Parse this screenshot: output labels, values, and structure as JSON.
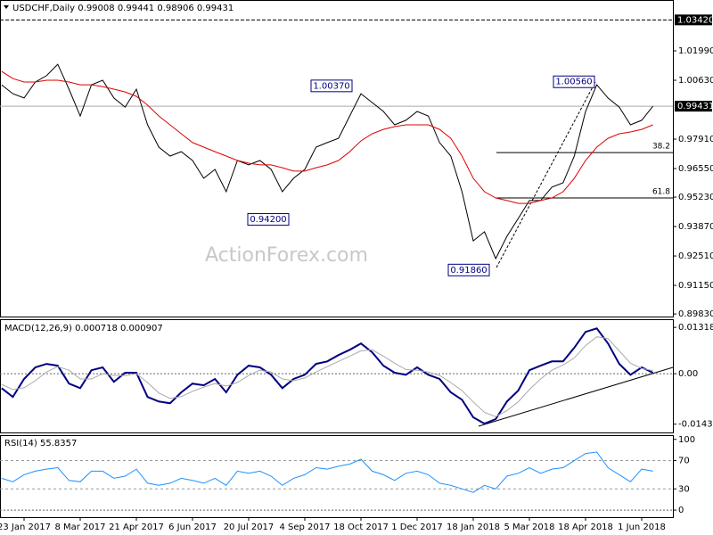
{
  "chart_data": [
    {
      "type": "line",
      "title": "USDCHF,Daily  0.99008 0.99441 0.98906 0.99431",
      "watermark": "ActionForex.com",
      "categories": [
        null,
        null,
        "23 Jan 2017",
        null,
        null,
        null,
        null,
        "8 Mar 2017",
        null,
        null,
        null,
        null,
        "21 Apr 2017",
        null,
        null,
        null,
        null,
        "6 Jun 2017",
        null,
        null,
        null,
        null,
        "20 Jul 2017",
        null,
        null,
        null,
        null,
        "4 Sep 2017",
        null,
        null,
        null,
        null,
        "18 Oct 2017",
        null,
        null,
        null,
        null,
        "1 Dec 2017",
        null,
        null,
        null,
        null,
        "18 Jan 2018",
        null,
        null,
        null,
        null,
        "5 Mar 2018",
        null,
        null,
        null,
        null,
        "18 Apr 2018",
        null,
        null,
        null,
        null,
        "1 Jun 2018",
        null
      ],
      "series": [
        {
          "name": "USDCHF",
          "color": "#000000",
          "values": [
            1.0042,
            1.0001,
            0.9981,
            1.0055,
            1.0084,
            1.0137,
            1.0022,
            0.9898,
            1.0042,
            1.0063,
            0.9981,
            0.9939,
            1.0022,
            0.9857,
            0.9754,
            0.9713,
            0.9733,
            0.9692,
            0.961,
            0.9651,
            0.9548,
            0.9692,
            0.9672,
            0.9692,
            0.9651,
            0.9548,
            0.961,
            0.9651,
            0.9754,
            0.9775,
            0.9795,
            0.9898,
            1.0001,
            0.996,
            0.9919,
            0.9857,
            0.9878,
            0.9919,
            0.9898,
            0.9775,
            0.9713,
            0.9548,
            0.9321,
            0.9363,
            0.9239,
            0.9342,
            0.9424,
            0.9507,
            0.9507,
            0.9569,
            0.9589,
            0.9713,
            0.9919,
            1.0042,
            0.9981,
            0.9939,
            0.9857,
            0.9878,
            0.9943
          ]
        },
        {
          "name": "MA",
          "color": "#e00000",
          "values": [
            1.0104,
            1.0071,
            1.0055,
            1.0055,
            1.0063,
            1.0063,
            1.0055,
            1.0042,
            1.0042,
            1.0034,
            1.0022,
            1.0009,
            0.9989,
            0.9948,
            0.9898,
            0.9857,
            0.9816,
            0.9775,
            0.9754,
            0.9733,
            0.9713,
            0.9692,
            0.968,
            0.9672,
            0.9672,
            0.9659,
            0.9643,
            0.9643,
            0.9659,
            0.9672,
            0.9692,
            0.9733,
            0.9783,
            0.9816,
            0.9836,
            0.9849,
            0.9857,
            0.9857,
            0.9857,
            0.9836,
            0.9795,
            0.9713,
            0.961,
            0.9548,
            0.9519,
            0.9507,
            0.9494,
            0.9494,
            0.9507,
            0.9519,
            0.9548,
            0.961,
            0.9692,
            0.9754,
            0.9795,
            0.9816,
            0.9824,
            0.9836,
            0.9857
          ]
        }
      ],
      "ylim": [
        0.8971,
        1.0434
      ],
      "yticks": [
        {
          "value": 1.0199,
          "label": "1.01990"
        },
        {
          "value": 1.0063,
          "label": "1.00630"
        },
        {
          "value": 0.9791,
          "label": "0.97910"
        },
        {
          "value": 0.9655,
          "label": "0.96550"
        },
        {
          "value": 0.9523,
          "label": "0.95230"
        },
        {
          "value": 0.9387,
          "label": "0.93870"
        },
        {
          "value": 0.9251,
          "label": "0.92510"
        },
        {
          "value": 0.9115,
          "label": "0.91150"
        },
        {
          "value": 0.8983,
          "label": "0.89830"
        }
      ],
      "last_price": 0.99431,
      "level": {
        "value": 1.0342,
        "label": "1.03420"
      },
      "annotations": [
        {
          "value": 1.0037,
          "label": "1.00370"
        },
        {
          "value": 0.942,
          "label": "0.94200"
        },
        {
          "value": 0.9186,
          "label": "0.91860"
        },
        {
          "value": 1.0056,
          "label": "1.00560"
        }
      ],
      "fib_levels": [
        {
          "ratio": 38.2,
          "price": 0.9729
        },
        {
          "ratio": 61.8,
          "price": 0.9519
        }
      ]
    },
    {
      "type": "line",
      "title": "MACD(12,26,9) 0.000718 0.000907",
      "series": [
        {
          "name": "MACD",
          "color": "#000080",
          "values": [
            -0.0041,
            -0.0066,
            -0.0015,
            0.0018,
            0.0028,
            0.0023,
            -0.0028,
            -0.0041,
            0.001,
            0.0018,
            -0.0023,
            0.0003,
            0.0003,
            -0.0066,
            -0.0079,
            -0.0084,
            -0.0053,
            -0.0028,
            -0.0033,
            -0.0015,
            -0.0053,
            -0.0003,
            0.0023,
            0.0018,
            -0.0003,
            -0.0041,
            -0.0015,
            -0.0003,
            0.0028,
            0.0035,
            0.0053,
            0.0068,
            0.0086,
            0.0061,
            0.0023,
            0.0003,
            -0.0003,
            0.0018,
            -0.0003,
            -0.0015,
            -0.0053,
            -0.0074,
            -0.0124,
            -0.0142,
            -0.0129,
            -0.0079,
            -0.0048,
            0.001,
            0.0023,
            0.0035,
            0.0035,
            0.0074,
            0.0119,
            0.0129,
            0.0086,
            0.0028,
            -0.0003,
            0.0018,
            0.0003
          ]
        },
        {
          "name": "Signal",
          "color": "#aaaaaa",
          "values": [
            -0.003,
            -0.0045,
            -0.004,
            -0.002,
            0.0005,
            0.002,
            0.001,
            -0.0015,
            -0.0015,
            0.0,
            -0.0005,
            -0.0005,
            0.0,
            -0.0025,
            -0.0055,
            -0.007,
            -0.0065,
            -0.005,
            -0.0038,
            -0.0028,
            -0.0035,
            -0.0025,
            -0.0005,
            0.001,
            0.0005,
            -0.0015,
            -0.002,
            -0.0012,
            0.0005,
            0.002,
            0.0035,
            0.005,
            0.0065,
            0.0068,
            0.005,
            0.003,
            0.0012,
            0.001,
            0.0005,
            -0.0005,
            -0.0025,
            -0.0048,
            -0.008,
            -0.011,
            -0.0122,
            -0.0105,
            -0.008,
            -0.0045,
            -0.0015,
            0.001,
            0.0025,
            0.0045,
            0.008,
            0.0105,
            0.01,
            0.0065,
            0.003,
            0.0015,
            0.0009
          ]
        }
      ],
      "ylim": [
        -0.0167,
        0.0155
      ],
      "yticks": [
        0.013184,
        {
          "value": 0,
          "label": "0.00"
        },
        -0.014339
      ]
    },
    {
      "type": "line",
      "title": "RSI(14) 55.8357",
      "series": [
        {
          "name": "RSI",
          "color": "#1e90ff",
          "values": [
            45,
            40,
            50,
            55,
            58,
            60,
            42,
            40,
            55,
            55,
            45,
            48,
            58,
            38,
            35,
            38,
            45,
            42,
            38,
            45,
            35,
            55,
            52,
            55,
            48,
            35,
            45,
            50,
            60,
            58,
            62,
            65,
            72,
            55,
            50,
            42,
            52,
            55,
            50,
            38,
            35,
            30,
            25,
            35,
            30,
            48,
            52,
            60,
            52,
            58,
            60,
            70,
            80,
            82,
            60,
            50,
            40,
            58,
            55
          ]
        }
      ],
      "ylim": [
        -10,
        106
      ],
      "yticks": [
        100,
        70,
        30,
        0
      ],
      "levels": [
        70,
        30
      ]
    }
  ]
}
